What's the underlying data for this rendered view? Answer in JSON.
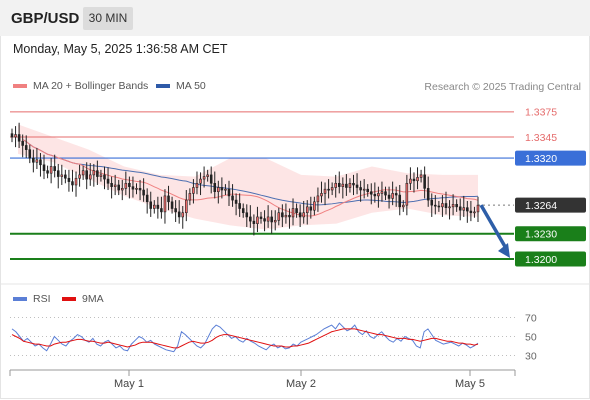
{
  "header": {
    "pair": "GBP/USD",
    "timeframe": "30 MIN"
  },
  "datetime": "Monday, May 5, 2025 1:36:58 AM CET",
  "legend": {
    "ma20": "MA 20 + Bollinger Bands",
    "ma50": "MA 50",
    "credit": "Research © 2025 Trading Central"
  },
  "rsi_legend": {
    "rsi": "RSI",
    "ma9": "9MA"
  },
  "colors": {
    "resistance": "#e56b6b",
    "pivot": "#3a6fd8",
    "last": "#333333",
    "support": "#1a7f1a",
    "ma20": "#f08080",
    "ma50": "#2e5aa8",
    "bollinger": "#fde0e0",
    "bullish": "#f26b6b",
    "arrow": "#2e5ea8",
    "rsi": "#5b7fd6",
    "rsi_ma": "#e01010"
  },
  "chart_data": {
    "type": "candlestick",
    "title": "GBP/USD 30 MIN",
    "x_labels": [
      "May 1",
      "May 2",
      "May 5"
    ],
    "price_range": [
      1.3175,
      1.3395
    ],
    "levels": [
      {
        "label": "1.3375",
        "value": 1.3375,
        "kind": "resistance"
      },
      {
        "label": "1.3345",
        "value": 1.3345,
        "kind": "resistance"
      },
      {
        "label": "1.3320",
        "value": 1.332,
        "kind": "pivot"
      },
      {
        "label": "1.3264",
        "value": 1.3264,
        "kind": "last"
      },
      {
        "label": "1.3230",
        "value": 1.323,
        "kind": "support"
      },
      {
        "label": "1.3200",
        "value": 1.32,
        "kind": "support"
      }
    ],
    "close": [
      1.3345,
      1.3348,
      1.334,
      1.3335,
      1.333,
      1.332,
      1.3315,
      1.3318,
      1.3312,
      1.3305,
      1.3302,
      1.331,
      1.3305,
      1.3298,
      1.33,
      1.3296,
      1.3292,
      1.3288,
      1.3296,
      1.33,
      1.3305,
      1.3295,
      1.33,
      1.3305,
      1.3298,
      1.33,
      1.3295,
      1.329,
      1.3286,
      1.3288,
      1.3282,
      1.3284,
      1.329,
      1.3286,
      1.3283,
      1.3284,
      1.3282,
      1.3276,
      1.3268,
      1.326,
      1.3264,
      1.326,
      1.3256,
      1.3275,
      1.3268,
      1.326,
      1.3256,
      1.325,
      1.3255,
      1.327,
      1.3278,
      1.3285,
      1.329,
      1.3295,
      1.3298,
      1.33,
      1.329,
      1.328,
      1.3285,
      1.3282,
      1.3283,
      1.3275,
      1.327,
      1.3266,
      1.326,
      1.3255,
      1.325,
      1.3245,
      1.3242,
      1.325,
      1.3248,
      1.3245,
      1.325,
      1.3244,
      1.3246,
      1.3255,
      1.325,
      1.3252,
      1.325,
      1.326,
      1.3255,
      1.325,
      1.3255,
      1.3262,
      1.3258,
      1.3268,
      1.3275,
      1.3278,
      1.3283,
      1.3282,
      1.3285,
      1.329,
      1.3286,
      1.3289,
      1.3285,
      1.329,
      1.3288,
      1.3285,
      1.3282,
      1.3283,
      1.328,
      1.3277,
      1.3275,
      1.3278,
      1.328,
      1.3276,
      1.3272,
      1.3278,
      1.3276,
      1.3262,
      1.3264,
      1.329,
      1.3295,
      1.3293,
      1.3297,
      1.33,
      1.3284,
      1.327,
      1.3264,
      1.3263,
      1.3262,
      1.3266,
      1.3261,
      1.3262,
      1.3265,
      1.3262,
      1.3258,
      1.3261,
      1.3257,
      1.3255,
      1.3256,
      1.3264
    ],
    "bollinger": {
      "upper": [
        1.336,
        1.3345,
        1.333,
        1.331,
        1.33,
        1.3298,
        1.332,
        1.332,
        1.33,
        1.3298,
        1.331,
        1.3302,
        1.33,
        1.33
      ],
      "lower": [
        1.3325,
        1.3315,
        1.3295,
        1.3275,
        1.326,
        1.3248,
        1.324,
        1.3235,
        1.324,
        1.3242,
        1.3255,
        1.326,
        1.3252,
        1.325
      ]
    },
    "rsi_axis": [
      "70",
      "50",
      "30"
    ],
    "rsi_range": [
      20,
      80
    ],
    "rsi": [
      58,
      55,
      50,
      45,
      48,
      44,
      40,
      42,
      38,
      35,
      42,
      50,
      46,
      42,
      40,
      45,
      48,
      52,
      50,
      46,
      44,
      48,
      42,
      40,
      44,
      46,
      42,
      38,
      40,
      36,
      35,
      42,
      46,
      50,
      48,
      44,
      46,
      42,
      40,
      38,
      36,
      35,
      34,
      40,
      55,
      52,
      48,
      44,
      40,
      38,
      42,
      50,
      58,
      62,
      60,
      56,
      52,
      48,
      50,
      46,
      44,
      48,
      45,
      43,
      40,
      38,
      36,
      40,
      42,
      38,
      40,
      37,
      38,
      42,
      40,
      44,
      46,
      48,
      50,
      52,
      55,
      58,
      60,
      62,
      58,
      64,
      60,
      56,
      58,
      62,
      55,
      52,
      56,
      50,
      48,
      52,
      55,
      50,
      46,
      44,
      48,
      45,
      50,
      48,
      46,
      40,
      38,
      55,
      58,
      52,
      46,
      44,
      42,
      43,
      44,
      42,
      40,
      43,
      41,
      38,
      40,
      43
    ],
    "rsi_ma": [
      52,
      50,
      48,
      45,
      44,
      43,
      42,
      42,
      41,
      40,
      40,
      42,
      43,
      44,
      44,
      45,
      46,
      47,
      47,
      46,
      45,
      45,
      44,
      43,
      43,
      44,
      43,
      42,
      41,
      40,
      39,
      40,
      41,
      43,
      44,
      44,
      44,
      43,
      42,
      41,
      40,
      39,
      38,
      38,
      40,
      42,
      44,
      45,
      44,
      43,
      43,
      44,
      46,
      49,
      51,
      52,
      52,
      51,
      50,
      49,
      48,
      47,
      46,
      45,
      44,
      43,
      42,
      41,
      40,
      40,
      40,
      39,
      39,
      40,
      40,
      41,
      42,
      43,
      45,
      47,
      49,
      51,
      53,
      55,
      56,
      57,
      58,
      58,
      58,
      58,
      57,
      56,
      55,
      54,
      53,
      52,
      52,
      51,
      50,
      49,
      48,
      48,
      48,
      47,
      47,
      46,
      45,
      46,
      47,
      48,
      48,
      47,
      46,
      45,
      45,
      44,
      43,
      43,
      42,
      42,
      41,
      42
    ]
  }
}
